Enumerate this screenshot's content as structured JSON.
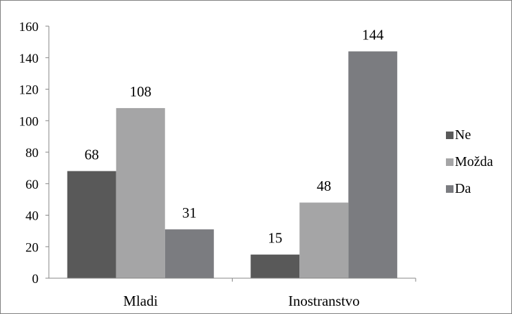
{
  "chart_data": {
    "type": "bar",
    "categories": [
      "Mladi",
      "Inostranstvo"
    ],
    "series": [
      {
        "name": "Ne",
        "values": [
          68,
          15
        ],
        "color": "#595959"
      },
      {
        "name": "Možda",
        "values": [
          108,
          48
        ],
        "color": "#a5a5a6"
      },
      {
        "name": "Da",
        "values": [
          31,
          144
        ],
        "color": "#7b7c80"
      }
    ],
    "ylim": [
      0,
      160
    ],
    "yticks": [
      "0",
      "20",
      "40",
      "60",
      "80",
      "100",
      "120",
      "140",
      "160"
    ],
    "legend_position": "right",
    "grid": false
  }
}
